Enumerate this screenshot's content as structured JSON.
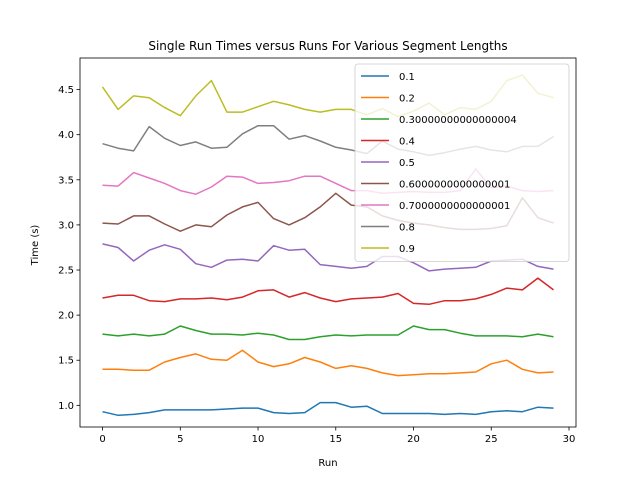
{
  "chart_data": {
    "type": "line",
    "title": "Single Run Times versus Runs For Various Segment Lengths",
    "xlabel": "Run",
    "ylabel": "Time (s)",
    "xlim": [
      -1.45,
      30.45
    ],
    "ylim": [
      0.76,
      4.85
    ],
    "xticks": [
      "0",
      "5",
      "10",
      "15",
      "20",
      "25",
      "30"
    ],
    "yticks": [
      "1.0",
      "1.5",
      "2.0",
      "2.5",
      "3.0",
      "3.5",
      "4.0",
      "4.5"
    ],
    "legend_position": "top-right",
    "grid": false,
    "x": [
      0,
      1,
      2,
      3,
      4,
      5,
      6,
      7,
      8,
      9,
      10,
      11,
      12,
      13,
      14,
      15,
      16,
      17,
      18,
      19,
      20,
      21,
      22,
      23,
      24,
      25,
      26,
      27,
      28,
      29
    ],
    "series": [
      {
        "name": "0.1",
        "color": "#1f77b4",
        "values": [
          0.93,
          0.89,
          0.9,
          0.92,
          0.95,
          0.95,
          0.95,
          0.95,
          0.96,
          0.97,
          0.97,
          0.92,
          0.91,
          0.92,
          1.03,
          1.03,
          0.98,
          0.99,
          0.91,
          0.91,
          0.91,
          0.91,
          0.9,
          0.91,
          0.9,
          0.93,
          0.94,
          0.93,
          0.98,
          0.97
        ]
      },
      {
        "name": "0.2",
        "color": "#ff7f0e",
        "values": [
          1.4,
          1.4,
          1.39,
          1.39,
          1.48,
          1.53,
          1.57,
          1.51,
          1.5,
          1.61,
          1.48,
          1.43,
          1.46,
          1.53,
          1.48,
          1.41,
          1.44,
          1.41,
          1.36,
          1.33,
          1.34,
          1.35,
          1.35,
          1.36,
          1.37,
          1.46,
          1.5,
          1.4,
          1.36,
          1.37
        ]
      },
      {
        "name": "0.30000000000000004",
        "color": "#2ca02c",
        "values": [
          1.79,
          1.77,
          1.79,
          1.77,
          1.79,
          1.88,
          1.83,
          1.79,
          1.79,
          1.78,
          1.8,
          1.78,
          1.73,
          1.73,
          1.76,
          1.78,
          1.77,
          1.78,
          1.78,
          1.78,
          1.88,
          1.84,
          1.84,
          1.8,
          1.77,
          1.77,
          1.77,
          1.76,
          1.79,
          1.76
        ]
      },
      {
        "name": "0.4",
        "color": "#d62728",
        "values": [
          2.19,
          2.22,
          2.22,
          2.16,
          2.15,
          2.18,
          2.18,
          2.19,
          2.17,
          2.2,
          2.27,
          2.28,
          2.2,
          2.25,
          2.19,
          2.15,
          2.18,
          2.19,
          2.2,
          2.24,
          2.13,
          2.12,
          2.16,
          2.16,
          2.18,
          2.23,
          2.3,
          2.28,
          2.41,
          2.28
        ]
      },
      {
        "name": "0.5",
        "color": "#9467bd",
        "values": [
          2.79,
          2.75,
          2.6,
          2.72,
          2.78,
          2.73,
          2.57,
          2.53,
          2.61,
          2.62,
          2.6,
          2.77,
          2.72,
          2.73,
          2.56,
          2.54,
          2.52,
          2.54,
          2.65,
          2.65,
          2.58,
          2.49,
          2.51,
          2.52,
          2.53,
          2.6,
          2.61,
          2.62,
          2.54,
          2.51
        ]
      },
      {
        "name": "0.6000000000000001",
        "color": "#8c564b",
        "values": [
          3.02,
          3.01,
          3.1,
          3.1,
          3.01,
          2.93,
          3.0,
          2.98,
          3.11,
          3.2,
          3.25,
          3.07,
          3.0,
          3.08,
          3.2,
          3.35,
          3.22,
          3.2,
          3.1,
          3.05,
          3.02,
          3.0,
          2.97,
          2.95,
          2.95,
          2.96,
          2.99,
          3.3,
          3.08,
          3.02
        ]
      },
      {
        "name": "0.7000000000000001",
        "color": "#e377c2",
        "values": [
          3.44,
          3.43,
          3.58,
          3.52,
          3.46,
          3.38,
          3.34,
          3.42,
          3.54,
          3.53,
          3.46,
          3.47,
          3.49,
          3.54,
          3.54,
          3.46,
          3.38,
          3.38,
          3.35,
          3.36,
          3.37,
          3.36,
          3.36,
          3.38,
          3.62,
          3.41,
          3.43,
          3.38,
          3.37,
          3.38
        ]
      },
      {
        "name": "0.8",
        "color": "#7f7f7f",
        "values": [
          3.9,
          3.85,
          3.82,
          4.09,
          3.96,
          3.88,
          3.92,
          3.85,
          3.86,
          4.01,
          4.1,
          4.1,
          3.95,
          3.99,
          3.93,
          3.86,
          3.83,
          3.79,
          3.93,
          3.84,
          3.81,
          3.77,
          3.8,
          3.84,
          3.87,
          3.83,
          3.81,
          3.87,
          3.87,
          3.98
        ]
      },
      {
        "name": "0.9",
        "color": "#bcbd22",
        "values": [
          4.53,
          4.28,
          4.43,
          4.41,
          4.3,
          4.21,
          4.43,
          4.6,
          4.25,
          4.25,
          4.31,
          4.37,
          4.33,
          4.28,
          4.25,
          4.28,
          4.28,
          4.22,
          4.29,
          4.2,
          4.26,
          4.35,
          4.22,
          4.3,
          4.28,
          4.37,
          4.6,
          4.66,
          4.46,
          4.41
        ]
      }
    ]
  }
}
